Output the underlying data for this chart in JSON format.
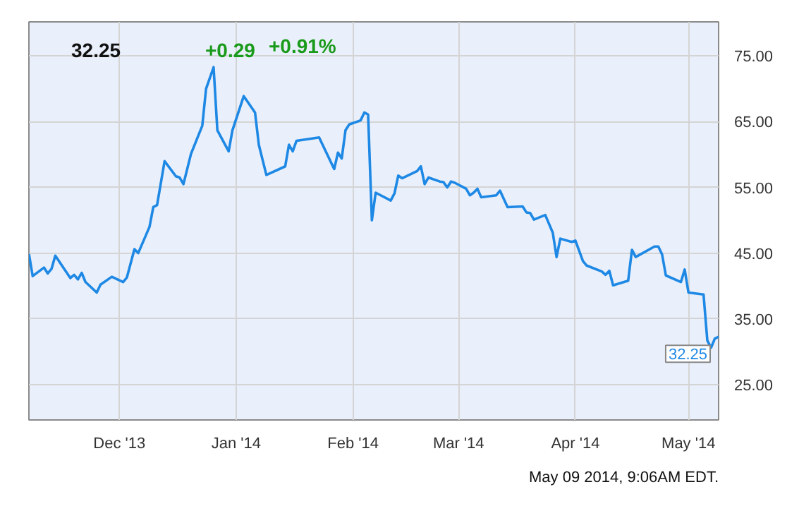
{
  "chart_data": {
    "type": "line",
    "title": "32.25",
    "annotations": [
      "+0.29",
      "+0.91%",
      "May 09 2014, 9:06AM EDT.",
      {
        "text": "32.25",
        "x": "2014-05-09",
        "y": 32.25
      }
    ],
    "x": [
      "2013-11-07",
      "2013-11-08",
      "2013-11-11",
      "2013-11-12",
      "2013-11-13",
      "2013-11-14",
      "2013-11-18",
      "2013-11-19",
      "2013-11-20",
      "2013-11-21",
      "2013-11-22",
      "2013-11-25",
      "2013-11-26",
      "2013-11-29",
      "2013-12-02",
      "2013-12-03",
      "2013-12-05",
      "2013-12-06",
      "2013-12-09",
      "2013-12-10",
      "2013-12-11",
      "2013-12-13",
      "2013-12-16",
      "2013-12-17",
      "2013-12-18",
      "2013-12-20",
      "2013-12-23",
      "2013-12-24",
      "2013-12-26",
      "2013-12-27",
      "2013-12-30",
      "2013-12-31",
      "2014-01-03",
      "2014-01-06",
      "2014-01-07",
      "2014-01-09",
      "2014-01-14",
      "2014-01-15",
      "2014-01-16",
      "2014-01-17",
      "2014-01-23",
      "2014-01-27",
      "2014-01-28",
      "2014-01-29",
      "2014-01-30",
      "2014-01-31",
      "2014-02-03",
      "2014-02-04",
      "2014-02-05",
      "2014-02-06",
      "2014-02-07",
      "2014-02-11",
      "2014-02-12",
      "2014-02-13",
      "2014-02-14",
      "2014-02-18",
      "2014-02-19",
      "2014-02-20",
      "2014-02-21",
      "2014-02-24",
      "2014-02-25",
      "2014-02-26",
      "2014-02-27",
      "2014-02-28",
      "2014-03-03",
      "2014-03-04",
      "2014-03-05",
      "2014-03-06",
      "2014-03-07",
      "2014-03-11",
      "2014-03-12",
      "2014-03-14",
      "2014-03-18",
      "2014-03-19",
      "2014-03-20",
      "2014-03-21",
      "2014-03-24",
      "2014-03-26",
      "2014-03-27",
      "2014-03-28",
      "2014-03-31",
      "2014-04-01",
      "2014-04-03",
      "2014-04-04",
      "2014-04-08",
      "2014-04-09",
      "2014-04-10",
      "2014-04-11",
      "2014-04-15",
      "2014-04-16",
      "2014-04-17",
      "2014-04-22",
      "2014-04-23",
      "2014-04-24",
      "2014-04-25",
      "2014-04-29",
      "2014-04-30",
      "2014-05-01",
      "2014-05-05",
      "2014-05-06",
      "2014-05-07",
      "2014-05-08",
      "2014-05-09"
    ],
    "series": [
      {
        "color": "#1e88e5",
        "values": [
          44.9,
          41.5,
          42.8,
          41.9,
          42.6,
          44.6,
          41.2,
          41.7,
          41.0,
          42.0,
          40.6,
          39.0,
          40.2,
          41.4,
          40.6,
          41.3,
          45.6,
          45.0,
          49.0,
          52.0,
          52.3,
          59.0,
          56.7,
          56.5,
          55.5,
          60.1,
          64.4,
          70.0,
          73.3,
          63.7,
          60.5,
          63.7,
          68.9,
          66.4,
          61.5,
          56.9,
          58.2,
          61.5,
          60.5,
          62.1,
          62.6,
          57.8,
          60.3,
          59.4,
          63.7,
          64.6,
          65.2,
          66.4,
          66.1,
          50.0,
          54.2,
          53.0,
          54.1,
          56.8,
          56.4,
          57.5,
          58.2,
          55.5,
          56.5,
          55.9,
          55.8,
          55.0,
          55.9,
          55.7,
          54.8,
          53.8,
          54.2,
          54.8,
          53.5,
          53.8,
          54.5,
          52.0,
          52.1,
          51.2,
          51.1,
          50.1,
          50.8,
          48.1,
          44.4,
          47.2,
          46.7,
          46.9,
          43.8,
          43.1,
          42.2,
          41.7,
          42.3,
          40.1,
          40.8,
          45.5,
          44.4,
          46.0,
          46.0,
          44.8,
          41.6,
          40.6,
          42.5,
          39.0,
          38.7,
          31.7,
          30.6,
          32.0,
          32.25
        ]
      }
    ],
    "xlim": [
      "2013-11-07",
      "2014-05-09"
    ],
    "xticks": [
      {
        "value": "2013-12-01",
        "label": "Dec '13"
      },
      {
        "value": "2014-01-01",
        "label": "Jan '14"
      },
      {
        "value": "2014-02-01",
        "label": "Feb '14"
      },
      {
        "value": "2014-03-01",
        "label": "Mar '14"
      },
      {
        "value": "2014-04-01",
        "label": "Apr '14"
      },
      {
        "value": "2014-05-01",
        "label": "May '14"
      }
    ],
    "ylim": [
      19.6,
      80.2
    ],
    "yticks": [
      {
        "value": 25,
        "label": "25.00"
      },
      {
        "value": 35,
        "label": "35.00"
      },
      {
        "value": 45,
        "label": "45.00"
      },
      {
        "value": 55,
        "label": "55.00"
      },
      {
        "value": 65,
        "label": "65.00"
      },
      {
        "value": 75,
        "label": "75.00"
      }
    ],
    "grid": true,
    "line_style": "solid"
  }
}
